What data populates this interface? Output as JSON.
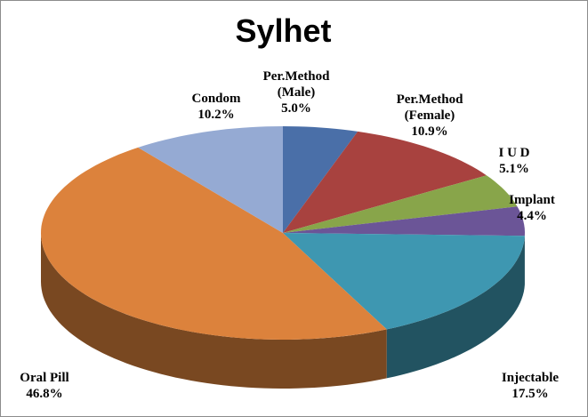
{
  "chart_data": {
    "type": "pie",
    "title": "Sylhet",
    "categories": [
      "Per.Method (Male)",
      "Per.Method (Female)",
      "I U D",
      "Implant",
      "Injectable",
      "Oral Pill",
      "Condom"
    ],
    "values": [
      5.0,
      10.9,
      5.1,
      4.4,
      17.5,
      46.8,
      10.2
    ],
    "value_labels": [
      "5.0%",
      "10.9%",
      "5.1%",
      "4.4%",
      "17.5%",
      "46.8%",
      "10.2%"
    ],
    "colors": [
      "#4a6fa8",
      "#a8423f",
      "#88a54a",
      "#6b5597",
      "#3e97b1",
      "#dc823c",
      "#95aad3"
    ]
  }
}
